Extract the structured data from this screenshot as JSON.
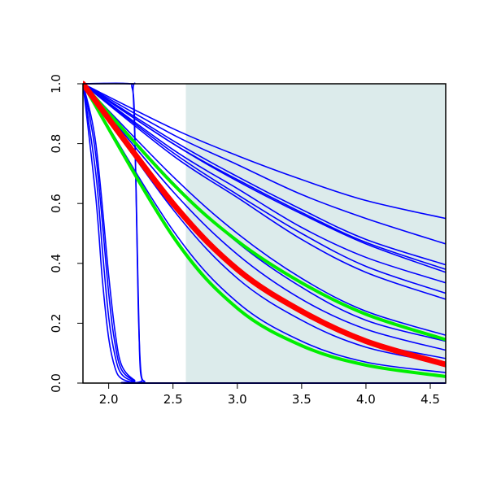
{
  "chart_data": {
    "type": "line",
    "title": "",
    "xlabel": "",
    "ylabel": "",
    "xlim": [
      1.8,
      4.62
    ],
    "ylim": [
      0,
      1
    ],
    "x_ticks": [
      "2.0",
      "2.5",
      "3.0",
      "3.5",
      "4.0",
      "4.5"
    ],
    "y_ticks": [
      "0.0",
      "0.2",
      "0.4",
      "0.6",
      "0.8",
      "1.0"
    ],
    "grid": false,
    "legend": "none",
    "shaded_region": {
      "x_from": 2.6,
      "x_to": 4.62,
      "color": "#dcebeb"
    },
    "series": [
      {
        "color": "#0000ff",
        "points": [
          [
            1.8,
            1
          ],
          [
            1.9,
            0.62
          ],
          [
            1.95,
            0.35
          ],
          [
            2.0,
            0.15
          ],
          [
            2.05,
            0.05
          ],
          [
            2.1,
            0.015
          ],
          [
            2.2,
            0.002
          ],
          [
            2.3,
            0
          ],
          [
            4.62,
            0
          ]
        ]
      },
      {
        "color": "#0000ff",
        "points": [
          [
            1.8,
            1
          ],
          [
            1.9,
            0.7
          ],
          [
            1.95,
            0.45
          ],
          [
            2.0,
            0.22
          ],
          [
            2.05,
            0.09
          ],
          [
            2.1,
            0.03
          ],
          [
            2.2,
            0.005
          ],
          [
            2.3,
            0
          ],
          [
            4.62,
            0
          ]
        ]
      },
      {
        "color": "#0000ff",
        "points": [
          [
            1.8,
            1
          ],
          [
            1.9,
            0.76
          ],
          [
            2.0,
            0.3
          ],
          [
            2.05,
            0.13
          ],
          [
            2.1,
            0.045
          ],
          [
            2.2,
            0.008
          ],
          [
            2.3,
            0
          ],
          [
            4.62,
            0
          ]
        ]
      },
      {
        "color": "#0000ff",
        "points": [
          [
            1.8,
            1
          ],
          [
            1.9,
            0.8
          ],
          [
            2.0,
            0.36
          ],
          [
            2.05,
            0.17
          ],
          [
            2.1,
            0.06
          ],
          [
            2.2,
            0.01
          ],
          [
            2.3,
            0
          ],
          [
            4.62,
            0
          ]
        ]
      },
      {
        "color": "#0000ff",
        "points": [
          [
            1.8,
            1
          ],
          [
            2.15,
            1
          ],
          [
            2.18,
            0.99
          ],
          [
            2.2,
            0.9
          ],
          [
            2.22,
            0.5
          ],
          [
            2.24,
            0.1
          ],
          [
            2.26,
            0.01
          ],
          [
            2.3,
            0
          ],
          [
            4.62,
            0
          ]
        ]
      },
      {
        "color": "#0000ff",
        "points": [
          [
            1.8,
            1
          ],
          [
            2.17,
            1
          ],
          [
            2.19,
            0.97
          ],
          [
            2.21,
            0.7
          ],
          [
            2.23,
            0.25
          ],
          [
            2.25,
            0.04
          ],
          [
            2.28,
            0.005
          ],
          [
            2.3,
            0
          ],
          [
            4.62,
            0
          ]
        ]
      },
      {
        "color": "#0000ff",
        "points": [
          [
            1.8,
            1
          ],
          [
            2.5,
            0.85
          ],
          [
            3.0,
            0.76
          ],
          [
            3.5,
            0.68
          ],
          [
            4.0,
            0.61
          ],
          [
            4.62,
            0.55
          ]
        ]
      },
      {
        "color": "#0000ff",
        "points": [
          [
            1.8,
            1
          ],
          [
            2.5,
            0.83
          ],
          [
            3.0,
            0.73
          ],
          [
            3.5,
            0.63
          ],
          [
            4.0,
            0.55
          ],
          [
            4.62,
            0.465
          ]
        ]
      },
      {
        "color": "#0000ff",
        "points": [
          [
            1.8,
            1
          ],
          [
            2.5,
            0.81
          ],
          [
            3.0,
            0.69
          ],
          [
            3.5,
            0.58
          ],
          [
            4.0,
            0.48
          ],
          [
            4.62,
            0.395
          ]
        ]
      },
      {
        "color": "#0000ff",
        "points": [
          [
            1.8,
            1
          ],
          [
            2.5,
            0.8
          ],
          [
            3.0,
            0.68
          ],
          [
            3.5,
            0.57
          ],
          [
            4.0,
            0.47
          ],
          [
            4.62,
            0.38
          ]
        ]
      },
      {
        "color": "#0000ff",
        "points": [
          [
            1.8,
            1
          ],
          [
            2.5,
            0.8
          ],
          [
            3.0,
            0.675
          ],
          [
            3.5,
            0.565
          ],
          [
            4.0,
            0.465
          ],
          [
            4.62,
            0.37
          ]
        ]
      },
      {
        "color": "#0000ff",
        "points": [
          [
            1.8,
            1
          ],
          [
            2.5,
            0.78
          ],
          [
            3.0,
            0.65
          ],
          [
            3.5,
            0.52
          ],
          [
            4.0,
            0.42
          ],
          [
            4.62,
            0.335
          ]
        ]
      },
      {
        "color": "#0000ff",
        "points": [
          [
            1.8,
            1
          ],
          [
            2.5,
            0.77
          ],
          [
            3.0,
            0.63
          ],
          [
            3.5,
            0.5
          ],
          [
            4.0,
            0.39
          ],
          [
            4.62,
            0.3
          ]
        ]
      },
      {
        "color": "#0000ff",
        "points": [
          [
            1.8,
            1
          ],
          [
            2.5,
            0.76
          ],
          [
            3.0,
            0.62
          ],
          [
            3.5,
            0.48
          ],
          [
            4.0,
            0.37
          ],
          [
            4.62,
            0.28
          ]
        ]
      },
      {
        "color": "#0000ff",
        "points": [
          [
            1.8,
            1
          ],
          [
            2.5,
            0.69
          ],
          [
            3.0,
            0.5
          ],
          [
            3.5,
            0.35
          ],
          [
            4.0,
            0.24
          ],
          [
            4.62,
            0.16
          ]
        ]
      },
      {
        "color": "#0000ff",
        "points": [
          [
            1.8,
            1
          ],
          [
            2.5,
            0.67
          ],
          [
            3.0,
            0.47
          ],
          [
            3.5,
            0.32
          ],
          [
            4.0,
            0.21
          ],
          [
            4.62,
            0.14
          ]
        ]
      },
      {
        "color": "#0000ff",
        "points": [
          [
            1.8,
            1
          ],
          [
            2.5,
            0.64
          ],
          [
            3.0,
            0.43
          ],
          [
            3.5,
            0.28
          ],
          [
            4.0,
            0.18
          ],
          [
            4.62,
            0.11
          ]
        ]
      },
      {
        "color": "#0000ff",
        "points": [
          [
            1.8,
            1
          ],
          [
            2.5,
            0.6
          ],
          [
            3.0,
            0.38
          ],
          [
            3.5,
            0.24
          ],
          [
            4.0,
            0.14
          ],
          [
            4.62,
            0.082
          ]
        ]
      },
      {
        "color": "#0000ff",
        "points": [
          [
            1.8,
            1
          ],
          [
            2.5,
            0.58
          ],
          [
            3.0,
            0.35
          ],
          [
            3.5,
            0.21
          ],
          [
            4.0,
            0.12
          ],
          [
            4.62,
            0.065
          ]
        ]
      },
      {
        "color": "#0000ff",
        "points": [
          [
            1.8,
            1
          ],
          [
            2.5,
            0.51
          ],
          [
            3.0,
            0.27
          ],
          [
            3.5,
            0.14
          ],
          [
            4.0,
            0.07
          ],
          [
            4.62,
            0.035
          ]
        ]
      },
      {
        "color": "#00ee00",
        "width": 4,
        "points": [
          [
            1.8,
            1
          ],
          [
            2.5,
            0.665
          ],
          [
            3.0,
            0.475
          ],
          [
            3.5,
            0.335
          ],
          [
            4.0,
            0.23
          ],
          [
            4.62,
            0.145
          ]
        ]
      },
      {
        "color": "#00ee00",
        "width": 4,
        "points": [
          [
            1.8,
            1
          ],
          [
            2.5,
            0.49
          ],
          [
            3.0,
            0.25
          ],
          [
            3.5,
            0.125
          ],
          [
            4.0,
            0.06
          ],
          [
            4.62,
            0.022
          ]
        ]
      },
      {
        "color": "#ff0000",
        "width": 7,
        "points": [
          [
            1.8,
            1
          ],
          [
            2.5,
            0.6
          ],
          [
            3.0,
            0.38
          ],
          [
            3.5,
            0.24
          ],
          [
            4.0,
            0.14
          ],
          [
            4.62,
            0.062
          ]
        ]
      }
    ]
  }
}
